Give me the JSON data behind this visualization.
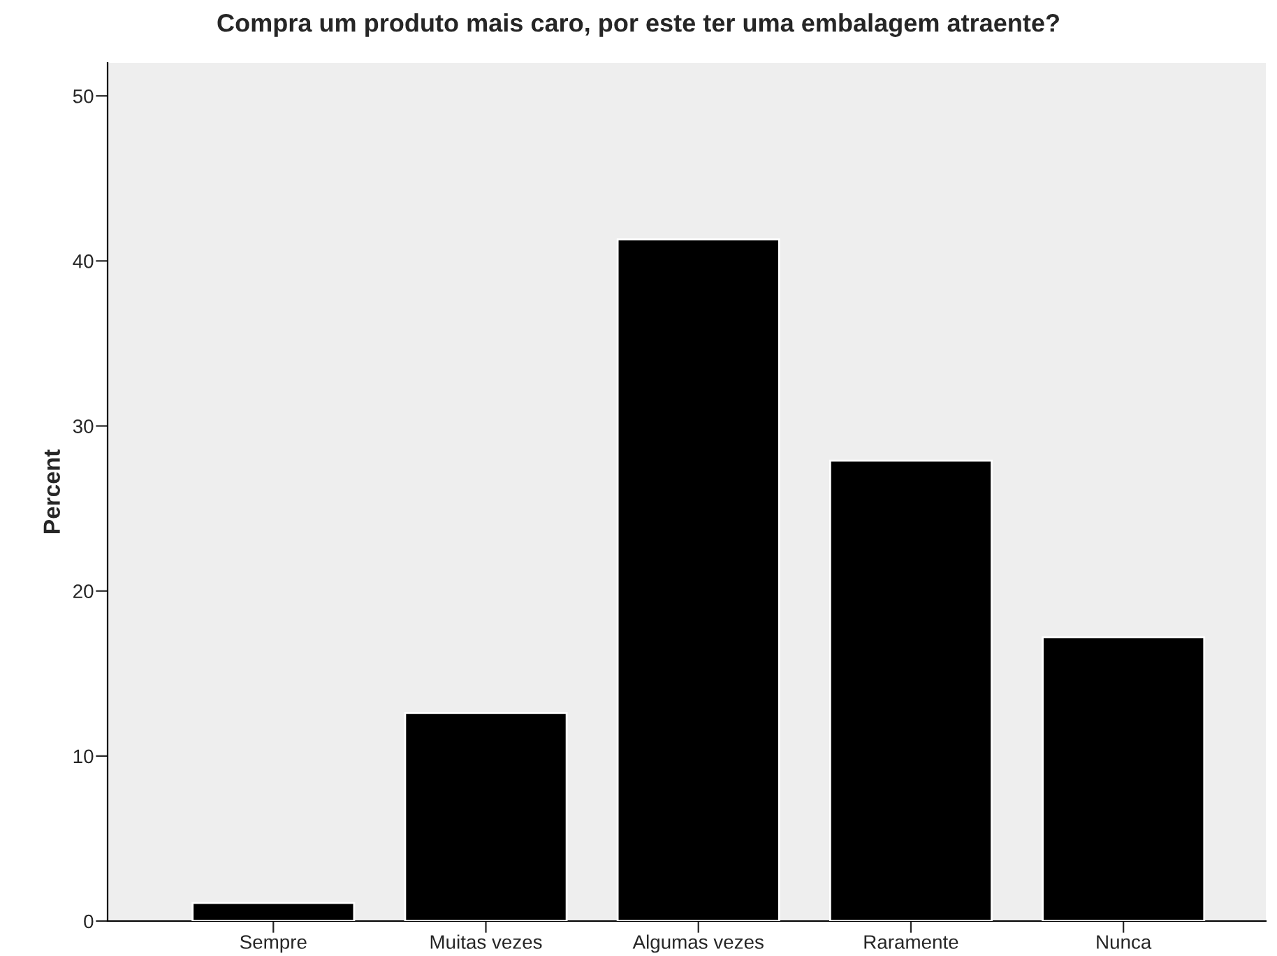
{
  "chart_data": {
    "type": "bar",
    "title": "Compra um produto mais caro, por este ter uma embalagem atraente?",
    "ylabel": "Percent",
    "categories": [
      "Sempre",
      "Muitas vezes",
      "Algumas vezes",
      "Raramente",
      "Nunca"
    ],
    "values": [
      1.1,
      12.6,
      41.3,
      27.9,
      17.2
    ],
    "color": "#000000",
    "ylim": [
      0,
      52
    ],
    "yticks": [
      0,
      10,
      20,
      30,
      40,
      50
    ],
    "grid": false
  }
}
